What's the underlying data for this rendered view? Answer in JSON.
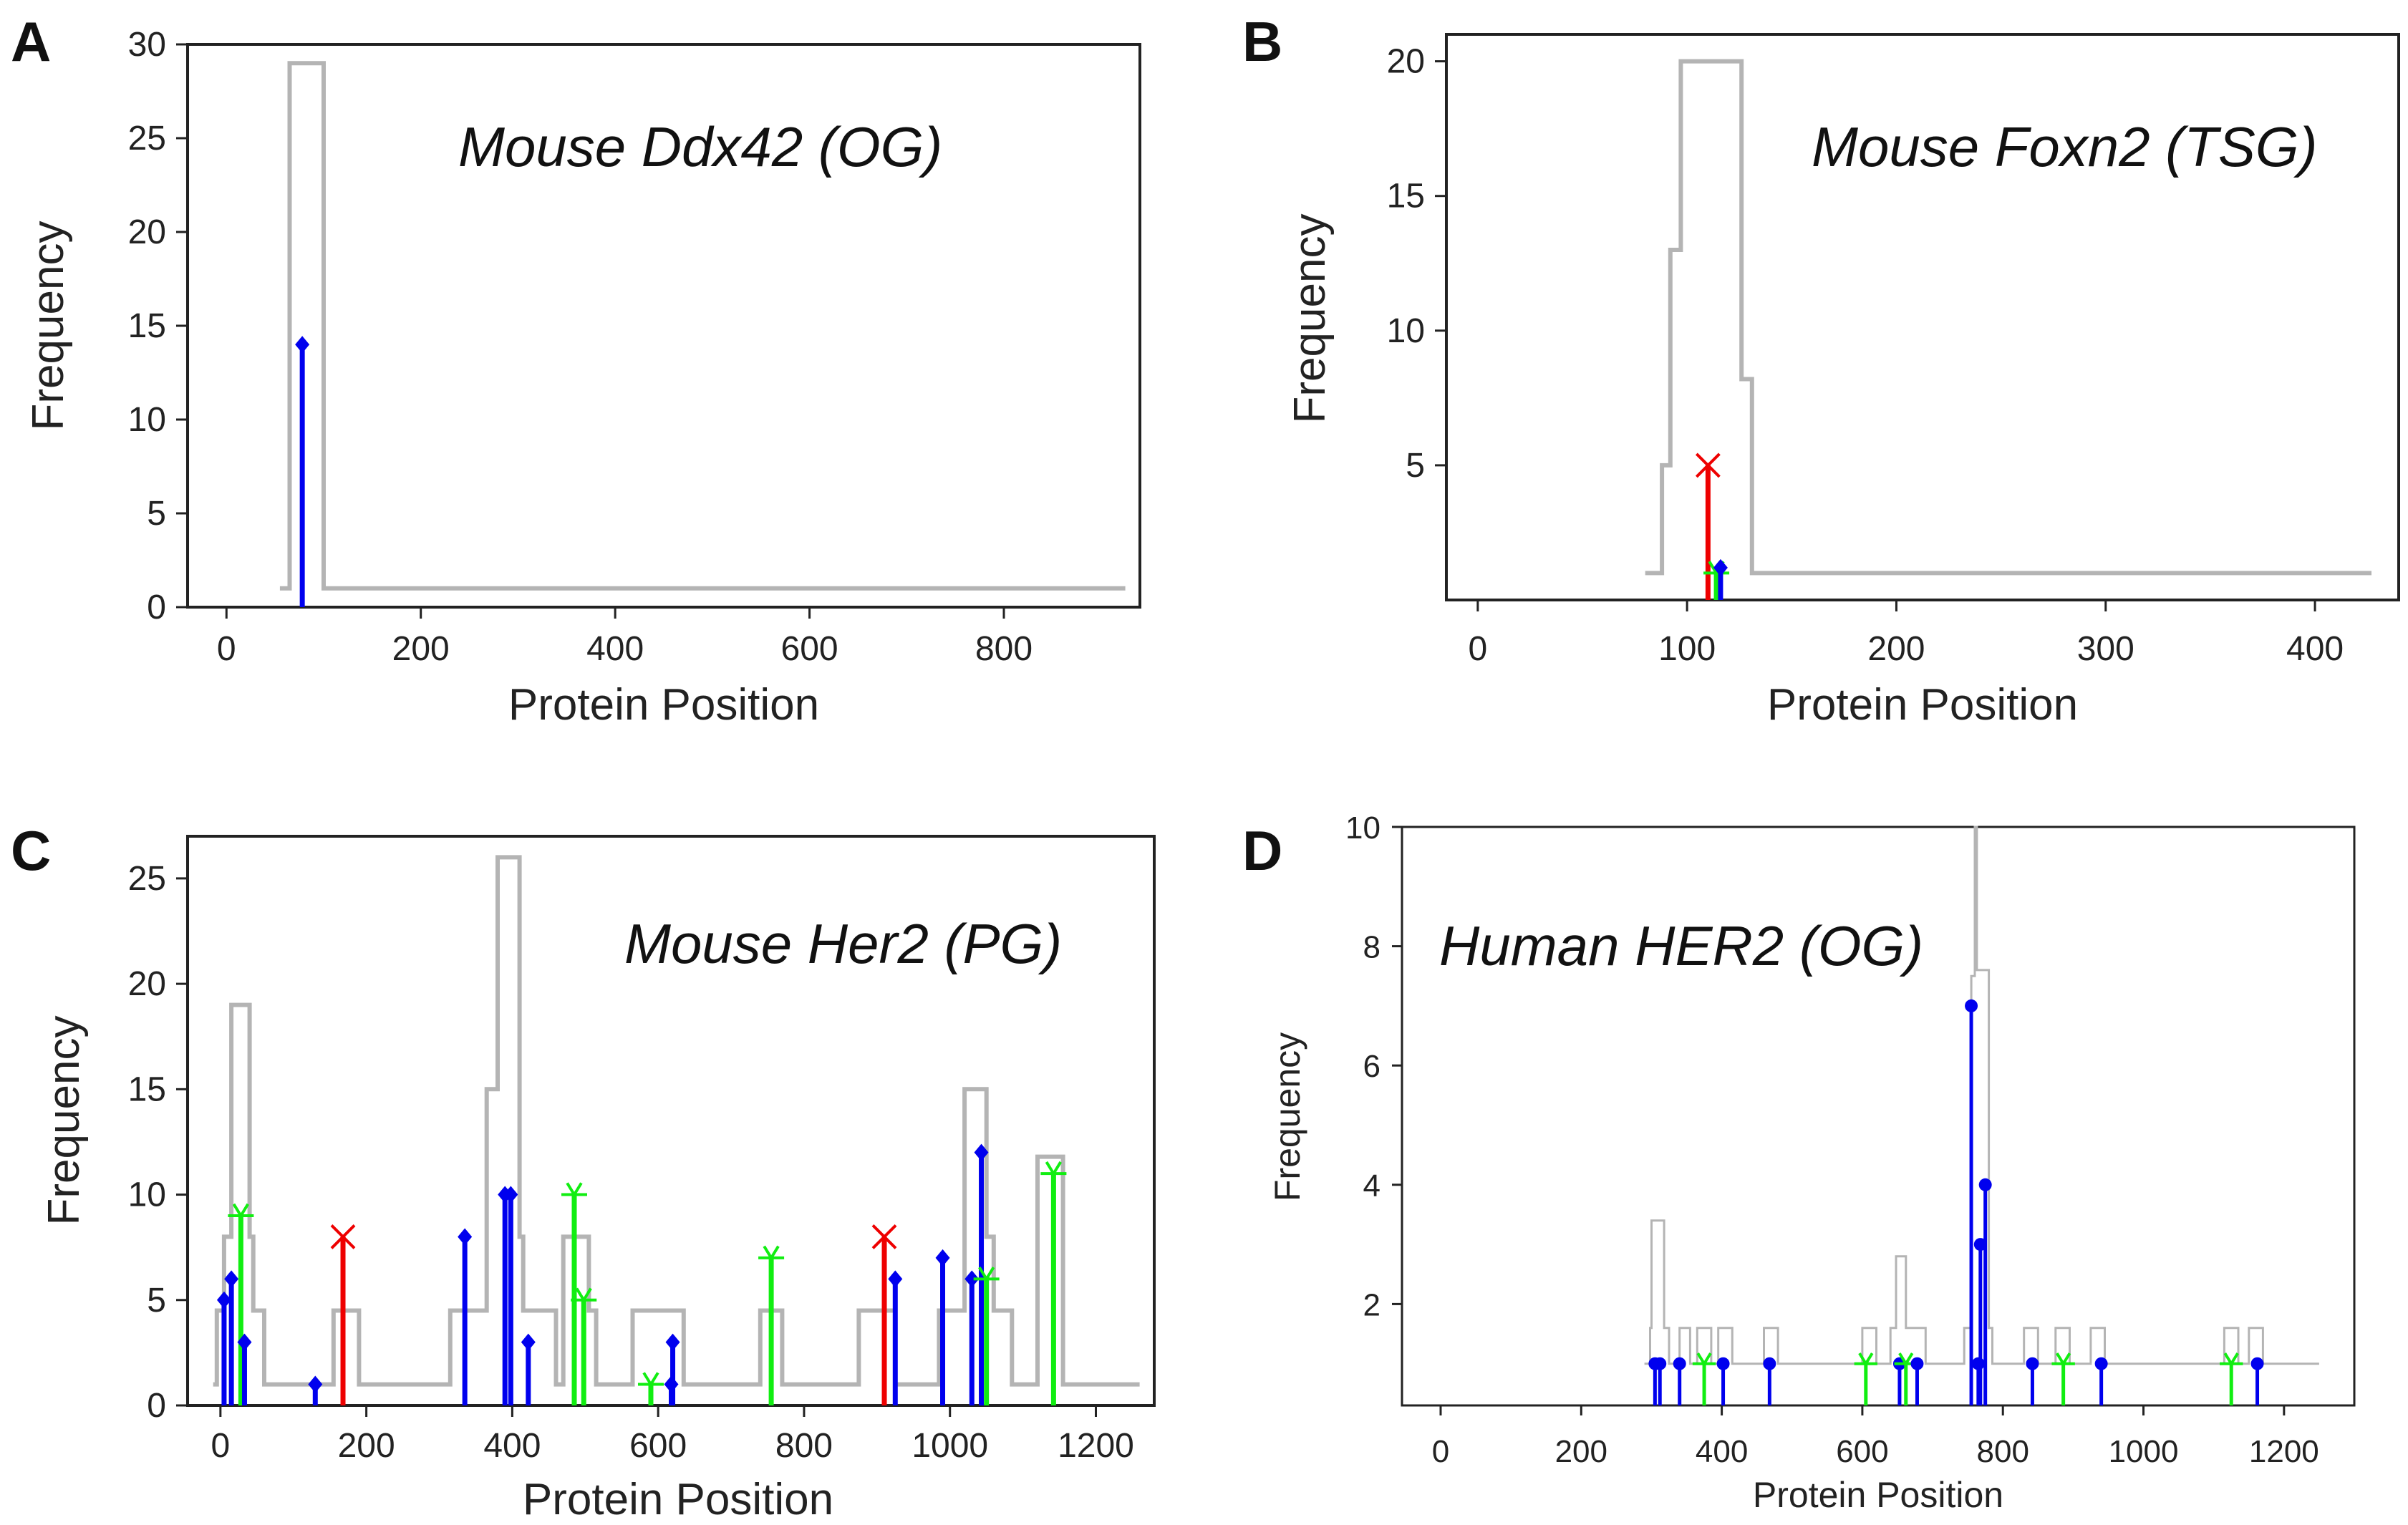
{
  "colors": {
    "density": "#b4b4b4",
    "missense": "#0000ee",
    "truncating": "#ee0000",
    "silent": "#11ee11",
    "axis": "#222222"
  },
  "chart_data": [
    {
      "panel": "A",
      "type": "lollipop",
      "title": "Mouse Ddx42  (OG)",
      "xlabel": "Protein Position",
      "ylabel": "Frequency",
      "xlim": [
        -40,
        940
      ],
      "ylim": [
        0,
        30
      ],
      "xticks": [
        0,
        200,
        400,
        600,
        800
      ],
      "yticks": [
        0,
        5,
        10,
        15,
        20,
        25,
        30
      ],
      "density": [
        [
          55,
          1
        ],
        [
          65,
          1
        ],
        [
          65,
          29
        ],
        [
          100,
          29
        ],
        [
          100,
          1
        ],
        [
          925,
          1
        ]
      ],
      "lollipops": [
        {
          "x": 78,
          "y": 14,
          "kind": "missense"
        }
      ]
    },
    {
      "panel": "B",
      "type": "lollipop",
      "title": "Mouse Foxn2  (TSG)",
      "xlabel": "Protein Position",
      "ylabel": "Frequency",
      "xlim": [
        -15,
        440
      ],
      "ylim": [
        0,
        21
      ],
      "xticks": [
        0,
        100,
        200,
        300,
        400
      ],
      "yticks": [
        5,
        10,
        15,
        20
      ],
      "density": [
        [
          80,
          1
        ],
        [
          88,
          1
        ],
        [
          88,
          5
        ],
        [
          92,
          5
        ],
        [
          92,
          13
        ],
        [
          97,
          13
        ],
        [
          97,
          20
        ],
        [
          126,
          20
        ],
        [
          126,
          8.2
        ],
        [
          131,
          8.2
        ],
        [
          131,
          1
        ],
        [
          427,
          1
        ]
      ],
      "lollipops": [
        {
          "x": 110,
          "y": 5,
          "kind": "truncating"
        },
        {
          "x": 114,
          "y": 1,
          "kind": "silent"
        },
        {
          "x": 116,
          "y": 1.2,
          "kind": "missense"
        }
      ]
    },
    {
      "panel": "C",
      "type": "lollipop",
      "title": "Mouse Her2  (PG)",
      "xlabel": "Protein Position",
      "ylabel": "Frequency",
      "xlim": [
        -45,
        1280
      ],
      "ylim": [
        0,
        27
      ],
      "xticks": [
        0,
        200,
        400,
        600,
        800,
        1000,
        1200
      ],
      "yticks": [
        0,
        5,
        10,
        15,
        20,
        25
      ],
      "density": [
        [
          -10,
          1
        ],
        [
          -5,
          1
        ],
        [
          -5,
          4.5
        ],
        [
          5,
          4.5
        ],
        [
          5,
          8
        ],
        [
          15,
          8
        ],
        [
          15,
          19
        ],
        [
          40,
          19
        ],
        [
          40,
          8
        ],
        [
          45,
          8
        ],
        [
          45,
          4.5
        ],
        [
          60,
          4.5
        ],
        [
          60,
          1
        ],
        [
          155,
          1
        ],
        [
          155,
          4.5
        ],
        [
          190,
          4.5
        ],
        [
          190,
          1
        ],
        [
          315,
          1
        ],
        [
          315,
          4.5
        ],
        [
          365,
          4.5
        ],
        [
          365,
          15
        ],
        [
          380,
          15
        ],
        [
          380,
          26
        ],
        [
          410,
          26
        ],
        [
          410,
          8
        ],
        [
          415,
          8
        ],
        [
          415,
          4.5
        ],
        [
          460,
          4.5
        ],
        [
          460,
          1
        ],
        [
          470,
          1
        ],
        [
          470,
          8
        ],
        [
          505,
          8
        ],
        [
          505,
          4.5
        ],
        [
          515,
          4.5
        ],
        [
          515,
          1
        ],
        [
          565,
          1
        ],
        [
          565,
          4.5
        ],
        [
          635,
          4.5
        ],
        [
          635,
          1
        ],
        [
          740,
          1
        ],
        [
          740,
          4.5
        ],
        [
          770,
          4.5
        ],
        [
          770,
          1
        ],
        [
          875,
          1
        ],
        [
          875,
          4.5
        ],
        [
          925,
          4.5
        ],
        [
          925,
          1
        ],
        [
          985,
          1
        ],
        [
          985,
          4.5
        ],
        [
          1020,
          4.5
        ],
        [
          1020,
          15
        ],
        [
          1050,
          15
        ],
        [
          1050,
          8
        ],
        [
          1060,
          8
        ],
        [
          1060,
          4.5
        ],
        [
          1085,
          4.5
        ],
        [
          1085,
          1
        ],
        [
          1120,
          1
        ],
        [
          1120,
          11.8
        ],
        [
          1155,
          11.8
        ],
        [
          1155,
          1
        ],
        [
          1260,
          1
        ]
      ],
      "lollipops": [
        {
          "x": 5,
          "y": 5,
          "kind": "missense"
        },
        {
          "x": 15,
          "y": 6,
          "kind": "missense"
        },
        {
          "x": 28,
          "y": 9,
          "kind": "silent"
        },
        {
          "x": 33,
          "y": 3,
          "kind": "missense"
        },
        {
          "x": 130,
          "y": 1,
          "kind": "missense"
        },
        {
          "x": 168,
          "y": 8,
          "kind": "truncating"
        },
        {
          "x": 335,
          "y": 8,
          "kind": "missense"
        },
        {
          "x": 390,
          "y": 10,
          "kind": "missense"
        },
        {
          "x": 398,
          "y": 10,
          "kind": "missense"
        },
        {
          "x": 422,
          "y": 3,
          "kind": "missense"
        },
        {
          "x": 485,
          "y": 10,
          "kind": "silent"
        },
        {
          "x": 498,
          "y": 5,
          "kind": "silent"
        },
        {
          "x": 590,
          "y": 1,
          "kind": "silent"
        },
        {
          "x": 618,
          "y": 1,
          "kind": "missense"
        },
        {
          "x": 620,
          "y": 3,
          "kind": "missense"
        },
        {
          "x": 755,
          "y": 7,
          "kind": "silent"
        },
        {
          "x": 910,
          "y": 8,
          "kind": "truncating"
        },
        {
          "x": 925,
          "y": 6,
          "kind": "missense"
        },
        {
          "x": 990,
          "y": 7,
          "kind": "missense"
        },
        {
          "x": 1030,
          "y": 6,
          "kind": "missense"
        },
        {
          "x": 1043,
          "y": 12,
          "kind": "missense"
        },
        {
          "x": 1050,
          "y": 6,
          "kind": "silent"
        },
        {
          "x": 1142,
          "y": 11,
          "kind": "silent"
        }
      ]
    },
    {
      "panel": "D",
      "type": "lollipop",
      "title": "Human HER2 (OG)",
      "xlabel": "Protein Position",
      "ylabel": "Frequency",
      "xlim": [
        -55,
        1300
      ],
      "ylim": [
        0.3,
        10
      ],
      "xticks": [
        0,
        200,
        400,
        600,
        800,
        1000,
        1200
      ],
      "yticks": [
        2,
        4,
        6,
        8,
        10
      ],
      "density": [
        [
          290,
          1
        ],
        [
          298,
          1
        ],
        [
          298,
          1.6
        ],
        [
          300,
          1.6
        ],
        [
          300,
          3.4
        ],
        [
          318,
          3.4
        ],
        [
          318,
          1.6
        ],
        [
          325,
          1.6
        ],
        [
          325,
          1
        ],
        [
          340,
          1
        ],
        [
          340,
          1.6
        ],
        [
          355,
          1.6
        ],
        [
          355,
          1
        ],
        [
          365,
          1
        ],
        [
          365,
          1.6
        ],
        [
          385,
          1.6
        ],
        [
          385,
          1
        ],
        [
          395,
          1
        ],
        [
          395,
          1.6
        ],
        [
          415,
          1.6
        ],
        [
          415,
          1
        ],
        [
          460,
          1
        ],
        [
          460,
          1.6
        ],
        [
          480,
          1.6
        ],
        [
          480,
          1
        ],
        [
          600,
          1
        ],
        [
          600,
          1.6
        ],
        [
          620,
          1.6
        ],
        [
          620,
          1
        ],
        [
          640,
          1
        ],
        [
          640,
          1.6
        ],
        [
          648,
          1.6
        ],
        [
          648,
          2.8
        ],
        [
          662,
          2.8
        ],
        [
          662,
          1.6
        ],
        [
          690,
          1.6
        ],
        [
          690,
          1
        ],
        [
          745,
          1
        ],
        [
          745,
          1.6
        ],
        [
          755,
          1.6
        ],
        [
          755,
          7.5
        ],
        [
          760,
          7.5
        ],
        [
          760,
          10
        ],
        [
          763,
          10
        ],
        [
          763,
          7.6
        ],
        [
          780,
          7.6
        ],
        [
          780,
          1.6
        ],
        [
          785,
          1.6
        ],
        [
          785,
          1
        ],
        [
          830,
          1
        ],
        [
          830,
          1.6
        ],
        [
          850,
          1.6
        ],
        [
          850,
          1
        ],
        [
          875,
          1
        ],
        [
          875,
          1.6
        ],
        [
          895,
          1.6
        ],
        [
          895,
          1
        ],
        [
          925,
          1
        ],
        [
          925,
          1.6
        ],
        [
          945,
          1.6
        ],
        [
          945,
          1
        ],
        [
          1115,
          1
        ],
        [
          1115,
          1.6
        ],
        [
          1135,
          1.6
        ],
        [
          1135,
          1
        ],
        [
          1150,
          1
        ],
        [
          1150,
          1.6
        ],
        [
          1170,
          1.6
        ],
        [
          1170,
          1
        ],
        [
          1250,
          1
        ]
      ],
      "lollipops": [
        {
          "x": 305,
          "y": 1,
          "kind": "missense"
        },
        {
          "x": 312,
          "y": 1,
          "kind": "missense"
        },
        {
          "x": 340,
          "y": 1,
          "kind": "missense"
        },
        {
          "x": 375,
          "y": 1,
          "kind": "silent"
        },
        {
          "x": 402,
          "y": 1,
          "kind": "missense"
        },
        {
          "x": 468,
          "y": 1,
          "kind": "missense"
        },
        {
          "x": 605,
          "y": 1,
          "kind": "silent"
        },
        {
          "x": 653,
          "y": 1,
          "kind": "missense"
        },
        {
          "x": 662,
          "y": 1,
          "kind": "silent"
        },
        {
          "x": 678,
          "y": 1,
          "kind": "missense"
        },
        {
          "x": 755,
          "y": 7,
          "kind": "missense"
        },
        {
          "x": 765,
          "y": 1,
          "kind": "missense"
        },
        {
          "x": 768,
          "y": 3,
          "kind": "missense"
        },
        {
          "x": 775,
          "y": 4,
          "kind": "missense"
        },
        {
          "x": 842,
          "y": 1,
          "kind": "missense"
        },
        {
          "x": 886,
          "y": 1,
          "kind": "silent"
        },
        {
          "x": 940,
          "y": 1,
          "kind": "missense"
        },
        {
          "x": 1125,
          "y": 1,
          "kind": "silent"
        },
        {
          "x": 1162,
          "y": 1,
          "kind": "missense"
        }
      ]
    }
  ]
}
